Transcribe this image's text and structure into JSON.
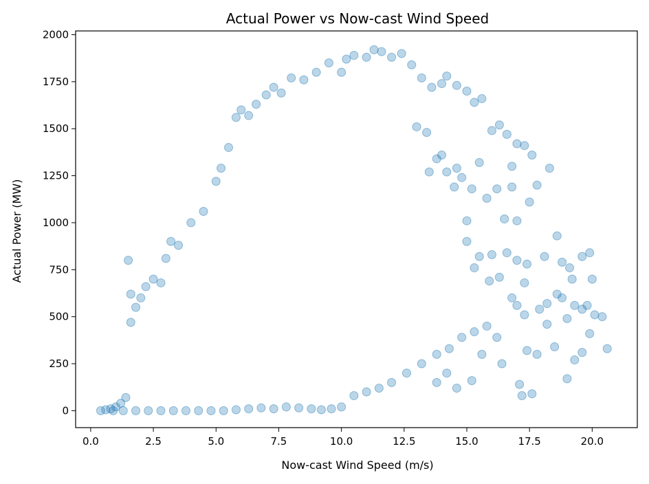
{
  "chart_data": {
    "type": "scatter",
    "title": "Actual Power vs Now-cast Wind Speed",
    "xlabel": "Now-cast Wind Speed (m/s)",
    "ylabel": "Actual Power (MW)",
    "xlim": [
      -0.6,
      21.8
    ],
    "ylim": [
      -90,
      2020
    ],
    "xticks": [
      0.0,
      2.5,
      5.0,
      7.5,
      10.0,
      12.5,
      15.0,
      17.5,
      20.0
    ],
    "xtick_labels": [
      "0.0",
      "2.5",
      "5.0",
      "7.5",
      "10.0",
      "12.5",
      "15.0",
      "17.5",
      "20.0"
    ],
    "yticks": [
      0,
      250,
      500,
      750,
      1000,
      1250,
      1500,
      1750,
      2000
    ],
    "ytick_labels": [
      "0",
      "250",
      "500",
      "750",
      "1000",
      "1250",
      "1500",
      "1750",
      "2000"
    ],
    "grid": false,
    "marker_color": "#1f77b4",
    "marker_alpha": 0.3,
    "points": [
      [
        0.4,
        0
      ],
      [
        0.6,
        5
      ],
      [
        0.8,
        10
      ],
      [
        1.0,
        20
      ],
      [
        1.2,
        40
      ],
      [
        1.4,
        70
      ],
      [
        1.5,
        800
      ],
      [
        1.6,
        620
      ],
      [
        1.6,
        470
      ],
      [
        1.8,
        550
      ],
      [
        2.0,
        600
      ],
      [
        2.2,
        660
      ],
      [
        2.5,
        700
      ],
      [
        2.8,
        680
      ],
      [
        3.0,
        810
      ],
      [
        3.2,
        900
      ],
      [
        3.5,
        880
      ],
      [
        4.0,
        1000
      ],
      [
        4.5,
        1060
      ],
      [
        5.0,
        1220
      ],
      [
        5.2,
        1290
      ],
      [
        5.5,
        1400
      ],
      [
        5.8,
        1560
      ],
      [
        6.0,
        1600
      ],
      [
        6.3,
        1570
      ],
      [
        6.6,
        1630
      ],
      [
        7.0,
        1680
      ],
      [
        7.3,
        1720
      ],
      [
        7.6,
        1690
      ],
      [
        8.0,
        1770
      ],
      [
        8.5,
        1760
      ],
      [
        9.0,
        1800
      ],
      [
        9.5,
        1850
      ],
      [
        10.0,
        1800
      ],
      [
        10.2,
        1870
      ],
      [
        10.5,
        1890
      ],
      [
        11.0,
        1880
      ],
      [
        11.3,
        1920
      ],
      [
        11.6,
        1910
      ],
      [
        12.0,
        1880
      ],
      [
        12.4,
        1900
      ],
      [
        12.8,
        1840
      ],
      [
        13.2,
        1770
      ],
      [
        13.6,
        1720
      ],
      [
        14.0,
        1740
      ],
      [
        14.2,
        1780
      ],
      [
        14.6,
        1730
      ],
      [
        15.0,
        1700
      ],
      [
        15.3,
        1640
      ],
      [
        15.6,
        1660
      ],
      [
        16.0,
        1490
      ],
      [
        16.3,
        1520
      ],
      [
        16.6,
        1470
      ],
      [
        17.0,
        1420
      ],
      [
        17.3,
        1410
      ],
      [
        17.6,
        1360
      ],
      [
        17.8,
        1200
      ],
      [
        18.3,
        1290
      ],
      [
        16.8,
        1300
      ],
      [
        16.2,
        1180
      ],
      [
        15.5,
        1320
      ],
      [
        15.8,
        1130
      ],
      [
        16.5,
        1020
      ],
      [
        17.0,
        1010
      ],
      [
        17.5,
        1110
      ],
      [
        16.8,
        1190
      ],
      [
        14.5,
        1190
      ],
      [
        14.8,
        1240
      ],
      [
        15.2,
        1180
      ],
      [
        15.0,
        1010
      ],
      [
        15.5,
        820
      ],
      [
        16.0,
        830
      ],
      [
        16.6,
        840
      ],
      [
        17.0,
        800
      ],
      [
        17.4,
        780
      ],
      [
        18.1,
        820
      ],
      [
        18.6,
        930
      ],
      [
        17.3,
        680
      ],
      [
        17.9,
        540
      ],
      [
        18.2,
        570
      ],
      [
        18.6,
        620
      ],
      [
        18.8,
        600
      ],
      [
        19.0,
        490
      ],
      [
        19.3,
        560
      ],
      [
        19.6,
        540
      ],
      [
        19.8,
        560
      ],
      [
        20.1,
        510
      ],
      [
        20.4,
        500
      ],
      [
        20.6,
        330
      ],
      [
        19.9,
        410
      ],
      [
        19.6,
        310
      ],
      [
        19.3,
        270
      ],
      [
        19.0,
        170
      ],
      [
        18.5,
        340
      ],
      [
        18.2,
        460
      ],
      [
        17.8,
        300
      ],
      [
        17.4,
        320
      ],
      [
        17.1,
        140
      ],
      [
        17.2,
        80
      ],
      [
        17.6,
        90
      ],
      [
        16.4,
        250
      ],
      [
        15.6,
        300
      ],
      [
        15.2,
        160
      ],
      [
        14.6,
        120
      ],
      [
        14.2,
        200
      ],
      [
        13.8,
        150
      ],
      [
        19.1,
        760
      ],
      [
        19.6,
        820
      ],
      [
        19.9,
        840
      ],
      [
        20.0,
        700
      ],
      [
        19.2,
        700
      ],
      [
        18.8,
        790
      ],
      [
        13.0,
        1510
      ],
      [
        13.4,
        1480
      ],
      [
        13.8,
        1340
      ],
      [
        14.0,
        1360
      ],
      [
        13.5,
        1270
      ],
      [
        14.2,
        1270
      ],
      [
        14.6,
        1290
      ],
      [
        15.0,
        900
      ],
      [
        15.3,
        760
      ],
      [
        15.9,
        690
      ],
      [
        16.3,
        710
      ],
      [
        16.8,
        600
      ],
      [
        17.0,
        560
      ],
      [
        17.3,
        510
      ],
      [
        16.2,
        390
      ],
      [
        15.8,
        450
      ],
      [
        15.3,
        420
      ],
      [
        14.8,
        390
      ],
      [
        14.3,
        330
      ],
      [
        13.8,
        300
      ],
      [
        13.2,
        250
      ],
      [
        12.6,
        200
      ],
      [
        12.0,
        150
      ],
      [
        11.5,
        120
      ],
      [
        11.0,
        100
      ],
      [
        10.5,
        80
      ],
      [
        10.0,
        20
      ],
      [
        9.6,
        10
      ],
      [
        9.2,
        5
      ],
      [
        8.8,
        10
      ],
      [
        8.3,
        15
      ],
      [
        7.8,
        20
      ],
      [
        7.3,
        10
      ],
      [
        6.8,
        15
      ],
      [
        6.3,
        10
      ],
      [
        5.8,
        5
      ],
      [
        5.3,
        0
      ],
      [
        4.8,
        0
      ],
      [
        4.3,
        0
      ],
      [
        3.8,
        0
      ],
      [
        3.3,
        0
      ],
      [
        2.8,
        0
      ],
      [
        2.3,
        0
      ],
      [
        1.8,
        0
      ],
      [
        1.3,
        0
      ],
      [
        0.9,
        0
      ]
    ]
  }
}
